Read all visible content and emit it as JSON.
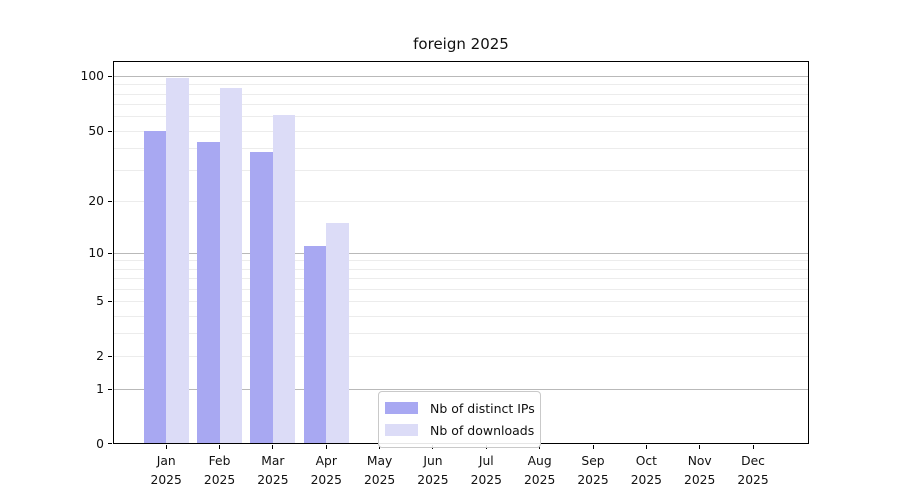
{
  "chart_data": {
    "type": "bar",
    "title": "foreign 2025",
    "categories": [
      "Jan",
      "Feb",
      "Mar",
      "Apr",
      "May",
      "Jun",
      "Jul",
      "Aug",
      "Sep",
      "Oct",
      "Nov",
      "Dec"
    ],
    "category_year": "2025",
    "series": [
      {
        "name": "Nb of distinct IPs",
        "color": "#a8a8f2",
        "values": [
          50,
          43,
          38,
          11,
          0,
          0,
          0,
          0,
          0,
          0,
          0,
          0
        ]
      },
      {
        "name": "Nb of downloads",
        "color": "#dcdcf7",
        "values": [
          97,
          86,
          61,
          15,
          0,
          0,
          0,
          0,
          0,
          0,
          0,
          0
        ]
      }
    ],
    "xlabel": "",
    "ylabel": "",
    "yscale": "log1p",
    "ylim": [
      0,
      121
    ],
    "y_ticks": [
      0,
      1,
      2,
      5,
      10,
      20,
      50,
      100
    ],
    "grid_major": [
      1,
      10,
      100
    ],
    "grid_minor": [
      2,
      3,
      4,
      5,
      6,
      7,
      8,
      9,
      20,
      30,
      40,
      50,
      60,
      70,
      80,
      90
    ],
    "legend_position": "lower center, inside axes",
    "colors": {
      "grid_major": "#b9b9b9",
      "grid_minor": "#ececec",
      "spine": "#000000",
      "text": "#111111",
      "background": "#ffffff"
    }
  }
}
